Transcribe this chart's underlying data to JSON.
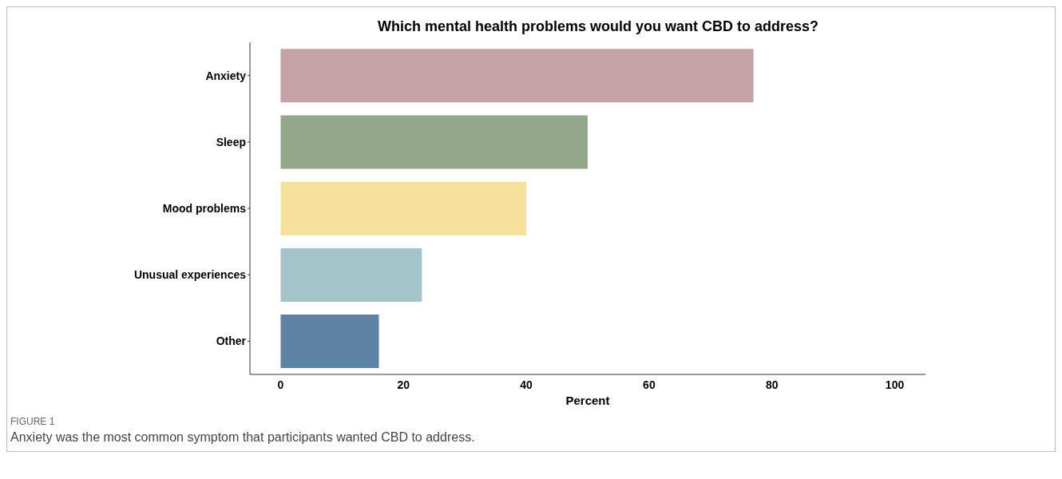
{
  "chart_data": {
    "type": "bar",
    "orientation": "horizontal",
    "title": "Which mental health problems would you want CBD to address?",
    "xlabel": "Percent",
    "categories": [
      "Anxiety",
      "Sleep",
      "Mood problems",
      "Unusual experiences",
      "Other"
    ],
    "values": [
      77,
      50,
      40,
      23,
      16
    ],
    "colors": [
      "#c4a2a5",
      "#93a78b",
      "#f5e09c",
      "#a4c4c9",
      "#5e82a4"
    ],
    "xlim": [
      -5,
      105
    ],
    "xticks": [
      0,
      20,
      40,
      60,
      80,
      100
    ],
    "grid": false,
    "annotations": [
      "FIGURE 1",
      "Anxiety was the most common symptom that participants wanted CBD to address."
    ]
  }
}
